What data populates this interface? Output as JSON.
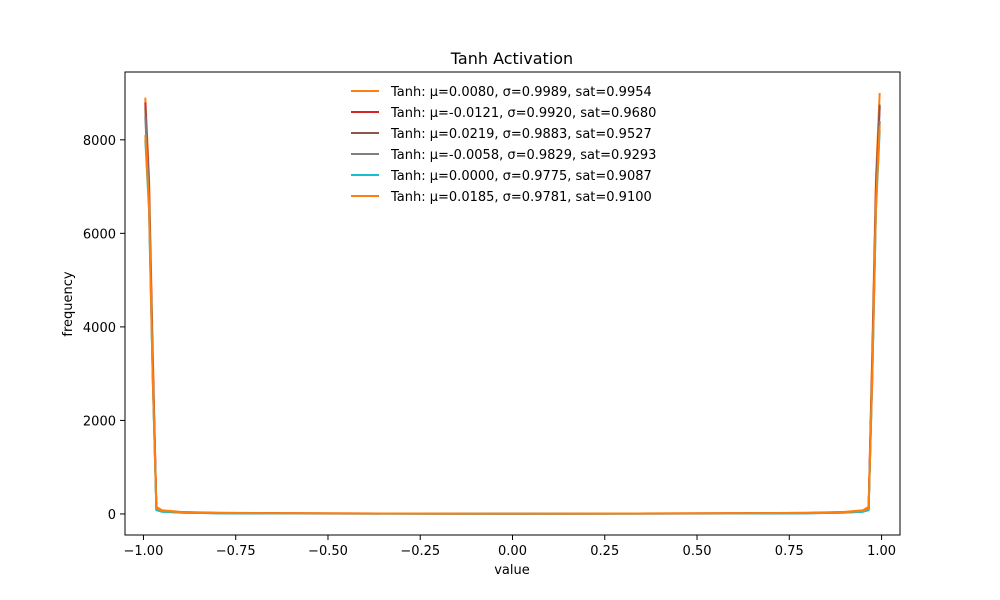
{
  "chart_data": {
    "type": "line",
    "title": "Tanh Activation",
    "xlabel": "value",
    "ylabel": "frequency",
    "xlim": [
      -1.05,
      1.05
    ],
    "ylim": [
      -450,
      9450
    ],
    "xticks": [
      -1.0,
      -0.75,
      -0.5,
      -0.25,
      0.0,
      0.25,
      0.5,
      0.75,
      1.0
    ],
    "xtick_labels": [
      "−1.00",
      "−0.75",
      "−0.50",
      "−0.25",
      "0.00",
      "0.25",
      "0.50",
      "0.75",
      "1.00"
    ],
    "yticks": [
      0,
      2000,
      4000,
      6000,
      8000
    ],
    "ytick_labels": [
      "0",
      "2000",
      "4000",
      "6000",
      "8000"
    ],
    "grid": false,
    "legend_position": "upper center",
    "series": [
      {
        "name": "Tanh: μ=0.0080, σ=0.9989, sat=0.9954",
        "color": "#ff7f0e",
        "x": [
          -0.995,
          -0.985,
          -0.975,
          -0.965,
          -0.95,
          -0.9,
          -0.8,
          -0.6,
          -0.3,
          0.0,
          0.3,
          0.6,
          0.8,
          0.9,
          0.95,
          0.965,
          0.975,
          0.985,
          0.995
        ],
        "y": [
          8900,
          7200,
          3500,
          150,
          80,
          45,
          25,
          15,
          10,
          8,
          10,
          15,
          25,
          45,
          80,
          150,
          3500,
          7200,
          9000
        ]
      },
      {
        "name": "Tanh: μ=-0.0121, σ=0.9920, sat=0.9680",
        "color": "#d62728",
        "x": [
          -0.995,
          -0.985,
          -0.975,
          -0.965,
          -0.95,
          -0.9,
          -0.8,
          -0.6,
          -0.3,
          0.0,
          0.3,
          0.6,
          0.8,
          0.9,
          0.95,
          0.965,
          0.975,
          0.985,
          0.995
        ],
        "y": [
          8800,
          7000,
          3300,
          100,
          60,
          35,
          20,
          12,
          9,
          7,
          9,
          12,
          20,
          35,
          60,
          100,
          3300,
          7000,
          8700
        ]
      },
      {
        "name": "Tanh: μ=0.0219, σ=0.9883, sat=0.9527",
        "color": "#8c564b",
        "x": [
          -0.995,
          -0.985,
          -0.975,
          -0.965,
          -0.95,
          -0.9,
          -0.8,
          -0.6,
          -0.3,
          0.0,
          0.3,
          0.6,
          0.8,
          0.9,
          0.95,
          0.965,
          0.975,
          0.985,
          0.995
        ],
        "y": [
          8700,
          6900,
          3200,
          90,
          55,
          32,
          18,
          11,
          8,
          7,
          8,
          11,
          18,
          32,
          55,
          90,
          3200,
          6900,
          8750
        ]
      },
      {
        "name": "Tanh: μ=-0.0058, σ=0.9829, sat=0.9293",
        "color": "#7f7f7f",
        "x": [
          -0.995,
          -0.985,
          -0.975,
          -0.965,
          -0.95,
          -0.9,
          -0.8,
          -0.6,
          -0.3,
          0.0,
          0.3,
          0.6,
          0.8,
          0.9,
          0.95,
          0.965,
          0.975,
          0.985,
          0.995
        ],
        "y": [
          8500,
          6700,
          3000,
          85,
          50,
          30,
          17,
          10,
          8,
          6,
          8,
          10,
          17,
          30,
          50,
          85,
          3000,
          6700,
          8400
        ]
      },
      {
        "name": "Tanh: μ=0.0000, σ=0.9775, sat=0.9087",
        "color": "#17becf",
        "x": [
          -0.995,
          -0.985,
          -0.975,
          -0.965,
          -0.95,
          -0.9,
          -0.8,
          -0.6,
          -0.3,
          0.0,
          0.3,
          0.6,
          0.8,
          0.9,
          0.95,
          0.965,
          0.975,
          0.985,
          0.995
        ],
        "y": [
          8000,
          6500,
          2900,
          80,
          48,
          28,
          16,
          10,
          7,
          6,
          7,
          10,
          16,
          28,
          48,
          80,
          2900,
          6500,
          8200
        ]
      },
      {
        "name": "Tanh: μ=0.0185, σ=0.9781, sat=0.9100",
        "color": "#ff7f0e",
        "x": [
          -0.995,
          -0.985,
          -0.975,
          -0.965,
          -0.95,
          -0.9,
          -0.8,
          -0.6,
          -0.3,
          0.0,
          0.3,
          0.6,
          0.8,
          0.9,
          0.95,
          0.965,
          0.975,
          0.985,
          0.995
        ],
        "y": [
          8100,
          6600,
          2950,
          120,
          70,
          40,
          22,
          13,
          9,
          7,
          9,
          13,
          22,
          40,
          70,
          120,
          2950,
          6600,
          8300
        ]
      }
    ]
  }
}
